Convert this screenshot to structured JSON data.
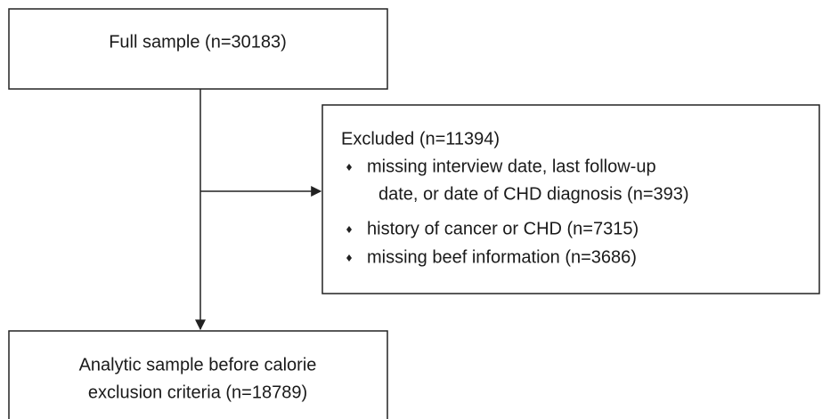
{
  "nodes": [
    {
      "lines": [
        "Full sample (n=30183)"
      ]
    },
    {
      "title": "Excluded (n=11394)",
      "items": [
        [
          "missing interview date, last follow-up",
          "date, or date of CHD diagnosis (n=393)"
        ],
        [
          "history of cancer or CHD (n=7315)"
        ],
        [
          "missing beef information (n=3686)"
        ]
      ]
    },
    {
      "lines": [
        "Analytic sample before calorie",
        "exclusion criteria (n=18789)"
      ]
    }
  ]
}
